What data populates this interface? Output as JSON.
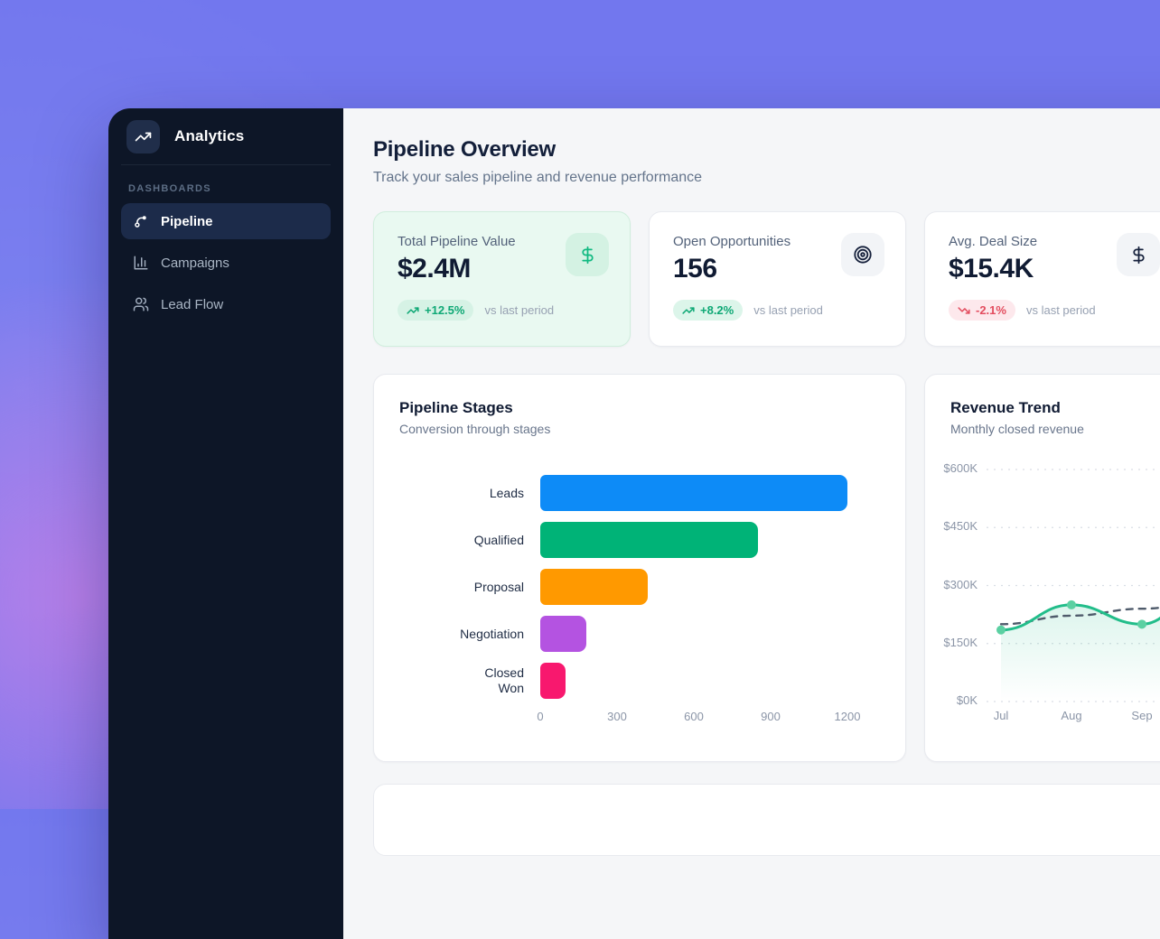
{
  "background": {
    "base_color": "#7277ee",
    "accent_blob_color": "#e982e4"
  },
  "sidebar": {
    "logo": {
      "title": "Analytics",
      "icon": "trending-up-icon"
    },
    "section_label": "DASHBOARDS",
    "items": [
      {
        "label": "Pipeline",
        "icon": "route-icon",
        "active": true
      },
      {
        "label": "Campaigns",
        "icon": "bar-chart-icon",
        "active": false
      },
      {
        "label": "Lead Flow",
        "icon": "users-icon",
        "active": false
      }
    ]
  },
  "header": {
    "title": "Pipeline Overview",
    "subtitle": "Track your sales pipeline and revenue performance"
  },
  "kpis": [
    {
      "label": "Total Pipeline Value",
      "value": "$2.4M",
      "delta": "+12.5%",
      "trend": "up",
      "caption": "vs last period",
      "icon": "dollar-icon",
      "highlighted": true,
      "accent_color": "#10b981"
    },
    {
      "label": "Open Opportunities",
      "value": "156",
      "delta": "+8.2%",
      "trend": "up",
      "caption": "vs last period",
      "icon": "target-icon",
      "highlighted": false,
      "accent_color": "#10b981"
    },
    {
      "label": "Avg. Deal Size",
      "value": "$15.4K",
      "delta": "-2.1%",
      "trend": "down",
      "caption": "vs last period",
      "icon": "dollar-icon",
      "highlighted": false,
      "accent_color": "#e34d5f"
    }
  ],
  "chart_data": [
    {
      "type": "bar",
      "title": "Pipeline Stages",
      "subtitle": "Conversion through stages",
      "orientation": "horizontal",
      "categories": [
        "Leads",
        "Qualified",
        "Proposal",
        "Negotiation",
        "Closed Won"
      ],
      "values": [
        1200,
        850,
        420,
        180,
        100
      ],
      "colors": [
        "#0d8bf7",
        "#00b377",
        "#ff9900",
        "#b453e1",
        "#f8186e"
      ],
      "xlabel": "",
      "ylabel": "",
      "xlim": [
        0,
        1200
      ],
      "x_ticks": [
        0,
        300,
        600,
        900,
        1200
      ],
      "grid": false
    },
    {
      "type": "line",
      "title": "Revenue Trend",
      "subtitle": "Monthly closed revenue",
      "x": [
        "Jul",
        "Aug",
        "Sep"
      ],
      "series": [
        {
          "name": "revenue",
          "style": "solid-area",
          "color": "#22bd8a",
          "dot_color": "#5bd0a2",
          "values": [
            185,
            250,
            200
          ],
          "offscreen_next": 320
        },
        {
          "name": "trend",
          "style": "dashed",
          "color": "#4f5b6b",
          "values": [
            200,
            222,
            240
          ],
          "offscreen_next": 262
        }
      ],
      "unit": "$K",
      "ylim": [
        0,
        600
      ],
      "y_ticks": [
        "$0K",
        "$150K",
        "$300K",
        "$450K",
        "$600K"
      ],
      "grid": "dashed-horizontal",
      "legend": "none",
      "clipped_right": true
    }
  ]
}
